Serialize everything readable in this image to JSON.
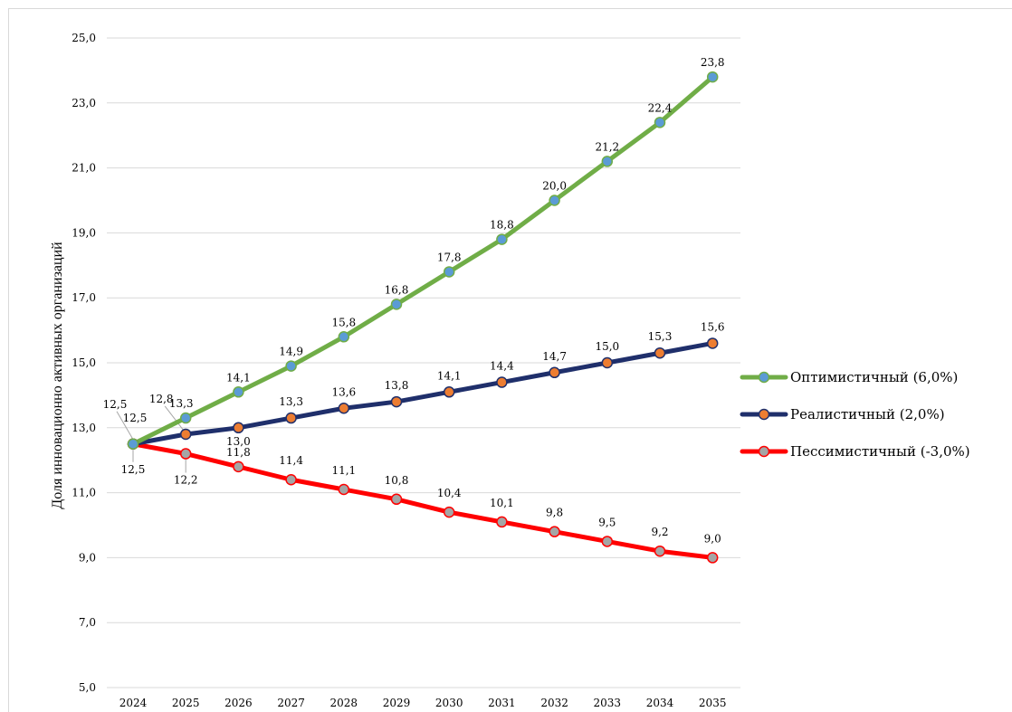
{
  "chart_data": {
    "type": "line",
    "ylabel": "Доля инновационно активных организаций",
    "xlabel": "",
    "categories": [
      "2024",
      "2025",
      "2026",
      "2027",
      "2028",
      "2029",
      "2030",
      "2031",
      "2032",
      "2033",
      "2034",
      "2035"
    ],
    "ylim": [
      5,
      25
    ],
    "yticks": [
      "5,0",
      "7,0",
      "9,0",
      "11,0",
      "13,0",
      "15,0",
      "17,0",
      "19,0",
      "21,0",
      "23,0",
      "25,0"
    ],
    "grid": true,
    "legend_position": "right",
    "series": [
      {
        "name": "Оптимистичный (6,0%)",
        "color": "#70ad47",
        "marker_color": "#5b9bd5",
        "values": [
          12.5,
          13.3,
          14.1,
          14.9,
          15.8,
          16.8,
          17.8,
          18.8,
          20.0,
          21.2,
          22.4,
          23.8
        ],
        "labels": [
          "12,5",
          "13,3",
          "14,1",
          "14,9",
          "15,8",
          "16,8",
          "17,8",
          "18,8",
          "20,0",
          "21,2",
          "22,4",
          "23,8"
        ]
      },
      {
        "name": "Реалистичный (2,0%)",
        "color": "#1f2f6b",
        "marker_color": "#ed7d31",
        "values": [
          12.5,
          12.8,
          13.0,
          13.3,
          13.6,
          13.8,
          14.1,
          14.4,
          14.7,
          15.0,
          15.3,
          15.6
        ],
        "labels": [
          "12,5",
          "12,8",
          "13,0",
          "13,3",
          "13,6",
          "13,8",
          "14,1",
          "14,4",
          "14,7",
          "15,0",
          "15,3",
          "15,6"
        ]
      },
      {
        "name": "Пессимистичный (-3,0%)",
        "color": "#ff0000",
        "marker_color": "#a5a5a5",
        "values": [
          12.5,
          12.2,
          11.8,
          11.4,
          11.1,
          10.8,
          10.4,
          10.1,
          9.8,
          9.5,
          9.2,
          9.0
        ],
        "labels": [
          "12,5",
          "12,2",
          "11,8",
          "11,4",
          "11,1",
          "10,8",
          "10,4",
          "10,1",
          "9,8",
          "9,5",
          "9,2",
          "9,0"
        ]
      }
    ]
  }
}
